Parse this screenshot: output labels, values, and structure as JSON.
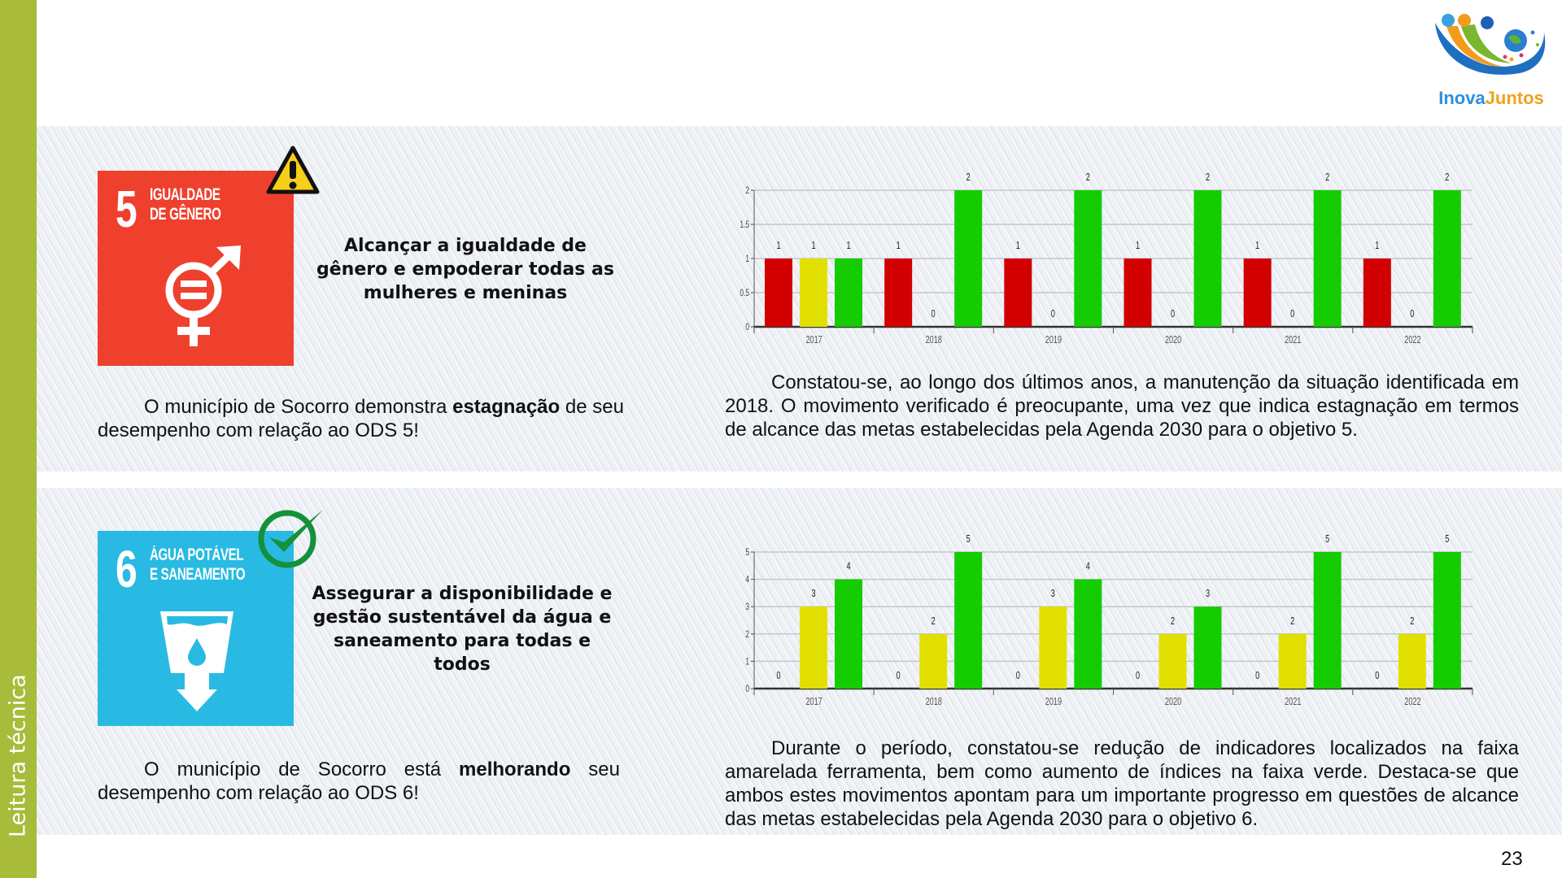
{
  "sidebar": {
    "label": "Leitura técnica"
  },
  "logo": {
    "text_a": "Inova",
    "text_b": "Juntos"
  },
  "page_number": "23",
  "colors": {
    "sidebar": "#a8bb3a",
    "sdg5": "#ef402d",
    "sdg6": "#28bae3",
    "red": "#d20000",
    "yellow": "#e2e000",
    "green": "#14cc00"
  },
  "sections": [
    {
      "sdg_number": "5",
      "sdg_title_line1": "IGUALDADE",
      "sdg_title_line2": "DE GÊNERO",
      "status_icon": "warning-icon",
      "heading": "Alcançar a igualdade de gênero e empoderar todas as mulheres e meninas",
      "summary_before": "O município de Socorro demonstra ",
      "summary_bold": "estagnação",
      "summary_after": " de seu desempenho com relação ao ODS 5!",
      "analysis": "Constatou-se, ao longo dos últimos anos, a manutenção da situação identificada em 2018. O movimento verificado é preocupante, uma vez que indica estagnação em termos de alcance das metas estabelecidas pela Agenda 2030 para o objetivo 5."
    },
    {
      "sdg_number": "6",
      "sdg_title_line1": "ÁGUA POTÁVEL",
      "sdg_title_line2": "E SANEAMENTO",
      "status_icon": "check-icon",
      "heading": "Assegurar a disponibilidade e gestão sustentável da água e saneamento para todas e todos",
      "summary_before": "O município de Socorro está ",
      "summary_bold": "melhorando",
      "summary_after": " seu desempenho com relação ao ODS 6!",
      "analysis": "Durante o período, constatou-se redução de indicadores localizados na faixa amarelada ferramenta, bem como aumento de índices na faixa verde. Destaca-se que ambos estes movimentos apontam para um importante progresso em questões de alcance das metas estabelecidas pela Agenda 2030 para o objetivo 6."
    }
  ],
  "chart_data": [
    {
      "type": "bar",
      "title": "",
      "categories": [
        "2017",
        "2018",
        "2019",
        "2020",
        "2021",
        "2022"
      ],
      "series": [
        {
          "name": "Vermelho",
          "color": "#d20000",
          "values": [
            1,
            1,
            1,
            1,
            1,
            1
          ]
        },
        {
          "name": "Amarelo",
          "color": "#e2e000",
          "values": [
            1,
            0,
            0,
            0,
            0,
            0
          ]
        },
        {
          "name": "Verde",
          "color": "#14cc00",
          "values": [
            1,
            2,
            2,
            2,
            2,
            2
          ]
        }
      ],
      "ylim": [
        0,
        2
      ],
      "yticks": [
        "0",
        "0.5",
        "1",
        "1.5",
        "2"
      ],
      "ytick_values": [
        0,
        0.5,
        1,
        1.5,
        2
      ],
      "grid": true,
      "legend": "none"
    },
    {
      "type": "bar",
      "title": "",
      "categories": [
        "2017",
        "2018",
        "2019",
        "2020",
        "2021",
        "2022"
      ],
      "series": [
        {
          "name": "Vermelho",
          "color": "#d20000",
          "values": [
            0,
            0,
            0,
            0,
            0,
            0
          ]
        },
        {
          "name": "Amarelo",
          "color": "#e2e000",
          "values": [
            3,
            2,
            3,
            2,
            2,
            2
          ]
        },
        {
          "name": "Verde",
          "color": "#14cc00",
          "values": [
            4,
            5,
            4,
            3,
            5,
            5
          ]
        }
      ],
      "ylim": [
        0,
        5
      ],
      "yticks": [
        "0",
        "1",
        "2",
        "3",
        "4",
        "5"
      ],
      "ytick_values": [
        0,
        1,
        2,
        3,
        4,
        5
      ],
      "grid": true,
      "legend": "none"
    }
  ]
}
